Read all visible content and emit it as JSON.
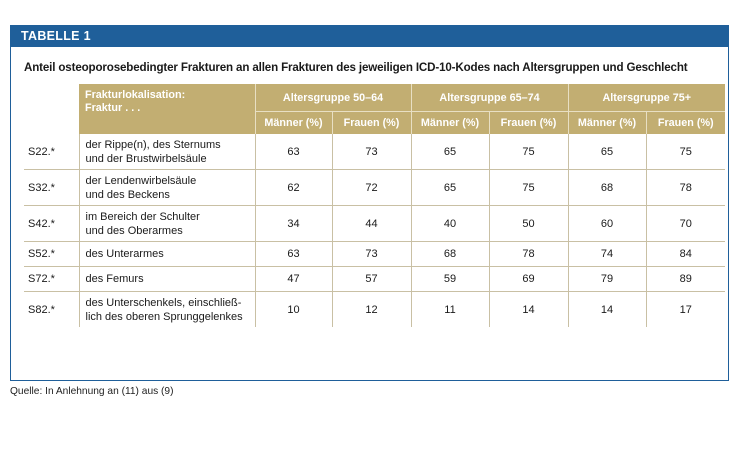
{
  "table_label": "TABELLE 1",
  "caption": "Anteil osteoporosebedingter Frakturen an allen Frakturen des jeweiligen ICD-10-Kodes nach Altersgruppen und Geschlecht",
  "header": {
    "localization_line1": "Frakturlokalisation:",
    "localization_line2": "Fraktur . . .",
    "groups": [
      "Altersgruppe 50–64",
      "Altersgruppe 65–74",
      "Altersgruppe 75+"
    ],
    "sub": [
      "Männer (%)",
      "Frauen (%)",
      "Männer (%)",
      "Frauen (%)",
      "Männer (%)",
      "Frauen (%)"
    ]
  },
  "rows": [
    {
      "code": "S22.*",
      "label_line1": "der Rippe(n), des Sternums",
      "label_line2": "und der Brustwirbelsäule",
      "values": [
        "63",
        "73",
        "65",
        "75",
        "65",
        "75"
      ]
    },
    {
      "code": "S32.*",
      "label_line1": "der Lendenwirbelsäule",
      "label_line2": "und des Beckens",
      "values": [
        "62",
        "72",
        "65",
        "75",
        "68",
        "78"
      ]
    },
    {
      "code": "S42.*",
      "label_line1": "im Bereich der Schulter",
      "label_line2": "und des Oberarmes",
      "values": [
        "34",
        "44",
        "40",
        "50",
        "60",
        "70"
      ]
    },
    {
      "code": "S52.*",
      "label_line1": "des Unterarmes",
      "label_line2": "",
      "values": [
        "63",
        "73",
        "68",
        "78",
        "74",
        "84"
      ]
    },
    {
      "code": "S72.*",
      "label_line1": "des Femurs",
      "label_line2": "",
      "values": [
        "47",
        "57",
        "59",
        "69",
        "79",
        "89"
      ]
    },
    {
      "code": "S82.*",
      "label_line1": "des Unterschenkels, einschließ-",
      "label_line2": "lich des oberen Sprunggelenkes",
      "values": [
        "10",
        "12",
        "11",
        "14",
        "14",
        "17"
      ]
    }
  ],
  "source": "Quelle: In Anlehnung an (11) aus (9)",
  "colors": {
    "banner": "#1f5f9a",
    "header_fill": "#c2ae72"
  }
}
